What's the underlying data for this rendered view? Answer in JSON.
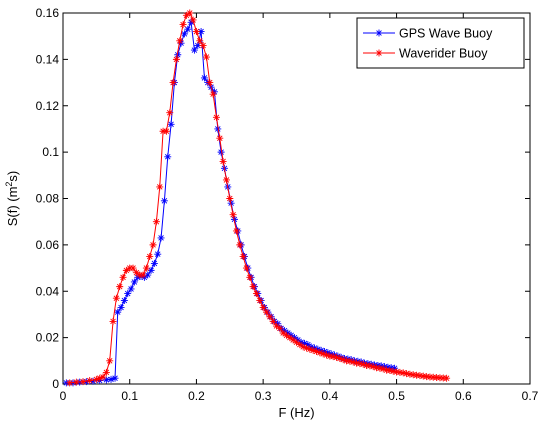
{
  "chart_data": {
    "type": "line",
    "title": "",
    "xlabel": "F (Hz)",
    "ylabel_main": "S(f) (m",
    "ylabel_sup": "2",
    "ylabel_end": "s)",
    "xlim": [
      0,
      0.7
    ],
    "ylim": [
      0,
      0.16
    ],
    "xticks": [
      0,
      0.1,
      0.2,
      0.3,
      0.4,
      0.5,
      0.6,
      0.7
    ],
    "xtick_labels": [
      "0",
      "0.1",
      "0.2",
      "0.3",
      "0.4",
      "0.5",
      "0.6",
      "0.7"
    ],
    "yticks": [
      0,
      0.02,
      0.04,
      0.06,
      0.08,
      0.1,
      0.12,
      0.14,
      0.16
    ],
    "ytick_labels": [
      "0",
      "0.02",
      "0.04",
      "0.06",
      "0.08",
      "0.1",
      "0.12",
      "0.14",
      "0.16"
    ],
    "grid": false,
    "legend_position": "top-right",
    "series": [
      {
        "name": "GPS Wave Buoy",
        "color": "#0000ff",
        "marker": "asterisk",
        "x": [
          0.005,
          0.015,
          0.025,
          0.035,
          0.045,
          0.055,
          0.065,
          0.072,
          0.078,
          0.082,
          0.087,
          0.092,
          0.097,
          0.102,
          0.107,
          0.112,
          0.117,
          0.122,
          0.127,
          0.132,
          0.137,
          0.142,
          0.147,
          0.152,
          0.157,
          0.162,
          0.167,
          0.172,
          0.177,
          0.182,
          0.187,
          0.192,
          0.197,
          0.202,
          0.207,
          0.212,
          0.217,
          0.222,
          0.227,
          0.232,
          0.237,
          0.242,
          0.247,
          0.252,
          0.257,
          0.262,
          0.267,
          0.272,
          0.277,
          0.282,
          0.287,
          0.292,
          0.297,
          0.302,
          0.307,
          0.312,
          0.317,
          0.322,
          0.327,
          0.332,
          0.337,
          0.342,
          0.347,
          0.352,
          0.357,
          0.362,
          0.367,
          0.372,
          0.377,
          0.382,
          0.387,
          0.392,
          0.397,
          0.402,
          0.407,
          0.412,
          0.417,
          0.422,
          0.427,
          0.432,
          0.437,
          0.442,
          0.447,
          0.452,
          0.457,
          0.462,
          0.467,
          0.472,
          0.477,
          0.482,
          0.487,
          0.492,
          0.497
        ],
        "y": [
          0.0005,
          0.0005,
          0.0008,
          0.001,
          0.0012,
          0.0015,
          0.0018,
          0.002,
          0.0025,
          0.031,
          0.033,
          0.036,
          0.039,
          0.041,
          0.044,
          0.046,
          0.0465,
          0.046,
          0.047,
          0.049,
          0.052,
          0.056,
          0.063,
          0.079,
          0.098,
          0.112,
          0.13,
          0.142,
          0.147,
          0.151,
          0.153,
          0.156,
          0.144,
          0.146,
          0.152,
          0.132,
          0.13,
          0.128,
          0.126,
          0.11,
          0.1,
          0.093,
          0.085,
          0.078,
          0.071,
          0.066,
          0.06,
          0.055,
          0.05,
          0.046,
          0.042,
          0.039,
          0.036,
          0.033,
          0.031,
          0.029,
          0.027,
          0.026,
          0.024,
          0.023,
          0.022,
          0.021,
          0.02,
          0.019,
          0.018,
          0.0175,
          0.017,
          0.016,
          0.0155,
          0.015,
          0.0145,
          0.014,
          0.0135,
          0.013,
          0.0125,
          0.012,
          0.0115,
          0.011,
          0.0108,
          0.0105,
          0.01,
          0.0098,
          0.0095,
          0.009,
          0.0088,
          0.0085,
          0.0082,
          0.008,
          0.0078,
          0.0075,
          0.0072,
          0.007,
          0.0068
        ]
      },
      {
        "name": "Waverider Buoy",
        "color": "#ff0000",
        "marker": "asterisk",
        "x": [
          0.01,
          0.02,
          0.03,
          0.04,
          0.05,
          0.055,
          0.06,
          0.065,
          0.07,
          0.075,
          0.08,
          0.085,
          0.09,
          0.095,
          0.1,
          0.105,
          0.11,
          0.115,
          0.12,
          0.125,
          0.13,
          0.135,
          0.14,
          0.145,
          0.15,
          0.155,
          0.16,
          0.165,
          0.17,
          0.175,
          0.18,
          0.185,
          0.19,
          0.195,
          0.2,
          0.205,
          0.21,
          0.215,
          0.22,
          0.225,
          0.23,
          0.235,
          0.24,
          0.245,
          0.25,
          0.255,
          0.26,
          0.265,
          0.27,
          0.275,
          0.28,
          0.285,
          0.29,
          0.295,
          0.3,
          0.305,
          0.31,
          0.315,
          0.32,
          0.325,
          0.33,
          0.335,
          0.34,
          0.345,
          0.35,
          0.355,
          0.36,
          0.365,
          0.37,
          0.375,
          0.38,
          0.385,
          0.39,
          0.395,
          0.4,
          0.405,
          0.41,
          0.415,
          0.42,
          0.425,
          0.43,
          0.435,
          0.44,
          0.445,
          0.45,
          0.455,
          0.46,
          0.465,
          0.47,
          0.475,
          0.48,
          0.485,
          0.49,
          0.495,
          0.5,
          0.505,
          0.51,
          0.515,
          0.52,
          0.525,
          0.53,
          0.535,
          0.54,
          0.545,
          0.55,
          0.555,
          0.56,
          0.565,
          0.57,
          0.575
        ],
        "y": [
          0.0005,
          0.0008,
          0.001,
          0.0015,
          0.002,
          0.0025,
          0.003,
          0.005,
          0.01,
          0.027,
          0.037,
          0.042,
          0.046,
          0.049,
          0.05,
          0.05,
          0.048,
          0.047,
          0.047,
          0.05,
          0.055,
          0.06,
          0.07,
          0.085,
          0.109,
          0.109,
          0.117,
          0.13,
          0.14,
          0.148,
          0.155,
          0.159,
          0.16,
          0.157,
          0.152,
          0.148,
          0.146,
          0.141,
          0.13,
          0.125,
          0.115,
          0.106,
          0.096,
          0.088,
          0.08,
          0.073,
          0.066,
          0.06,
          0.055,
          0.05,
          0.046,
          0.042,
          0.039,
          0.036,
          0.033,
          0.031,
          0.029,
          0.027,
          0.025,
          0.024,
          0.022,
          0.021,
          0.02,
          0.019,
          0.018,
          0.017,
          0.016,
          0.0155,
          0.015,
          0.0145,
          0.014,
          0.0135,
          0.013,
          0.0125,
          0.012,
          0.0118,
          0.0115,
          0.011,
          0.0105,
          0.01,
          0.0098,
          0.0095,
          0.009,
          0.0088,
          0.0085,
          0.008,
          0.0078,
          0.0075,
          0.007,
          0.0068,
          0.0065,
          0.006,
          0.0058,
          0.0055,
          0.0052,
          0.005,
          0.0048,
          0.0045,
          0.0042,
          0.004,
          0.0038,
          0.0036,
          0.0034,
          0.0032,
          0.003,
          0.0029,
          0.0028,
          0.0027,
          0.0026,
          0.0025
        ]
      }
    ]
  }
}
